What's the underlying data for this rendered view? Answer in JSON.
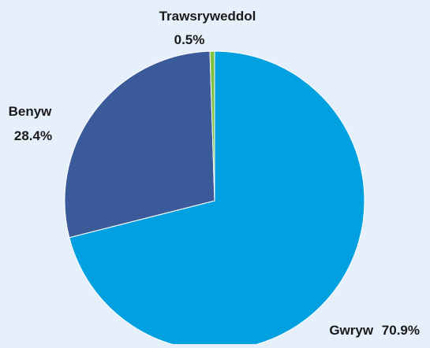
{
  "chart_data": {
    "type": "pie",
    "slices": [
      {
        "label": "Gwryw",
        "value": 70.9,
        "value_label": "70.9%",
        "color": "#00a0e1"
      },
      {
        "label": "Benyw",
        "value": 28.4,
        "value_label": "28.4%",
        "color": "#3a5a9a"
      },
      {
        "label": "Trawsryweddol",
        "value": 0.5,
        "value_label": "0.5%",
        "color": "#7cc142"
      }
    ],
    "start_angle_deg": 0,
    "direction": "clockwise",
    "slice_border_color": "#ffffff",
    "background_color": "#e6f0fa",
    "legend": "none"
  }
}
